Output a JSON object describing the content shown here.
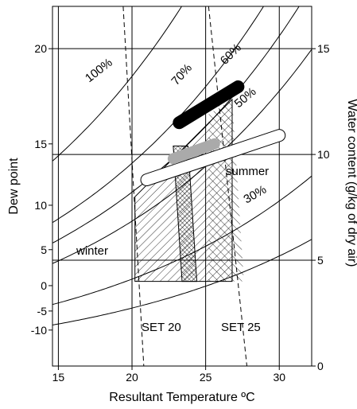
{
  "chart_data": {
    "type": "line",
    "title": "",
    "xlabel": "Resultant Temperature ºC",
    "ylabel_left": "Dew point",
    "ylabel_right": "Water content (g/kg of dry air)",
    "xlim": [
      14.6,
      32.2
    ],
    "right_ylim": [
      0,
      17
    ],
    "x_ticks": [
      15,
      20,
      25,
      30
    ],
    "left_ticks": [
      {
        "label": "20",
        "w": 15
      },
      {
        "label": "15",
        "w": 10.5
      },
      {
        "label": "10",
        "w": 7.6
      },
      {
        "label": "5",
        "w": 5.5
      },
      {
        "label": "0",
        "w": 3.8
      },
      {
        "label": "-5",
        "w": 2.6
      },
      {
        "label": "-10",
        "w": 1.7
      }
    ],
    "right_ticks": [
      0,
      5,
      10,
      15
    ],
    "horizontal_lines_w": [
      5,
      10,
      15
    ],
    "rh_curves": [
      {
        "label": "100%",
        "rh": 1.0
      },
      {
        "label": "70%",
        "rh": 0.7
      },
      {
        "label": "60%",
        "rh": 0.6
      },
      {
        "label": "50%",
        "rh": 0.5
      },
      {
        "label": "30%",
        "rh": 0.3
      },
      {
        "label": "",
        "rh": 0.2
      }
    ],
    "set_lines": [
      {
        "label": "SET 20",
        "x_top": 19.4,
        "x_bottom": 20.8
      },
      {
        "label": "SET 25",
        "x_top": 25.2,
        "x_bottom": 27.8
      }
    ],
    "regions": [
      {
        "label": "winter",
        "x_left": 20.2,
        "x_right": 26.8,
        "w_bottom": 4.0,
        "w_top": 10.0
      },
      {
        "label": "summer",
        "x_left": 23.3,
        "x_right": 27.6,
        "w_bottom": 4.0,
        "w_top": 12.6
      }
    ],
    "bands": [
      {
        "name": "black",
        "x": [
          23.2,
          27.2
        ],
        "w": [
          11.5,
          13.2
        ],
        "color": "#000000"
      },
      {
        "name": "gray",
        "x": [
          22.8,
          25.6
        ],
        "w": [
          9.8,
          10.5
        ],
        "color": "#aaaaaa"
      },
      {
        "name": "outline",
        "x": [
          21.0,
          30.0
        ],
        "w": [
          8.8,
          10.9
        ],
        "color": "#000000"
      }
    ],
    "labels": {
      "winter": "winter",
      "summer": "summer",
      "set20": "SET 20",
      "set25": "SET 25"
    }
  }
}
